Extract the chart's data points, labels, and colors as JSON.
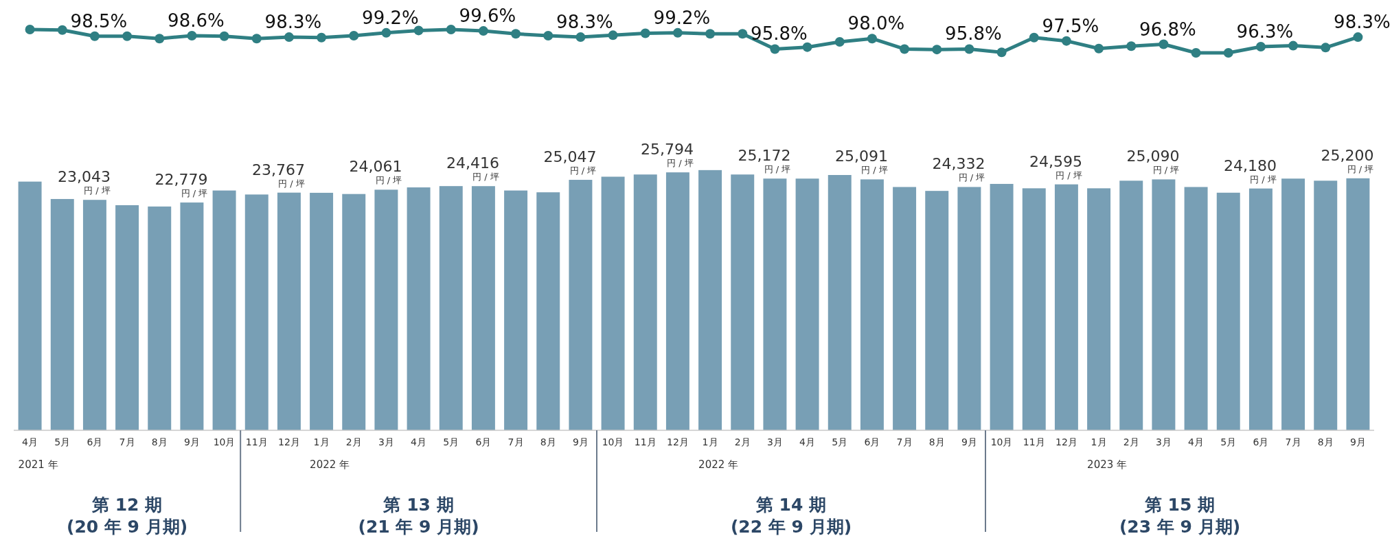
{
  "chart_data": [
    {
      "type": "line",
      "marker": "circle",
      "categories": [
        null,
        null,
        null,
        null,
        null,
        null,
        null,
        null,
        null,
        null,
        null,
        null,
        null,
        null,
        null,
        null,
        null,
        null,
        null,
        null,
        null,
        null,
        null,
        null,
        null,
        null,
        null,
        null,
        null,
        null,
        null,
        null,
        null,
        null,
        null,
        null,
        null,
        null,
        null,
        null,
        null,
        null
      ],
      "series": [
        {
          "color": "#2f7f83",
          "values": [
            99.9,
            99.8,
            98.5,
            98.5,
            98.0,
            98.6,
            98.5,
            98.0,
            98.3,
            98.2,
            98.6,
            99.2,
            99.7,
            99.9,
            99.6,
            99.0,
            98.6,
            98.3,
            98.7,
            99.1,
            99.2,
            99.0,
            99.0,
            95.8,
            96.2,
            97.3,
            98.0,
            95.8,
            95.7,
            95.8,
            95.1,
            98.2,
            97.5,
            95.9,
            96.4,
            96.8,
            95.0,
            95.0,
            96.3,
            96.5,
            96.1,
            98.3
          ],
          "value_labels": [
            null,
            null,
            "98.5%",
            null,
            null,
            "98.6%",
            null,
            null,
            "98.3%",
            null,
            null,
            "99.2%",
            null,
            null,
            "99.6%",
            null,
            null,
            "98.3%",
            null,
            null,
            "99.2%",
            null,
            null,
            "95.8%",
            null,
            null,
            "98.0%",
            null,
            null,
            "95.8%",
            null,
            null,
            "97.5%",
            null,
            null,
            "96.8%",
            null,
            null,
            "96.3%",
            null,
            null,
            "98.3%"
          ]
        }
      ]
    },
    {
      "type": "bar",
      "categories": [
        "4月",
        "5月",
        "6月",
        "7月",
        "8月",
        "9月",
        "10月",
        "11月",
        "12月",
        "1月",
        "2月",
        "3月",
        "4月",
        "5月",
        "6月",
        "7月",
        "8月",
        "9月",
        "10月",
        "11月",
        "12月",
        "1月",
        "2月",
        "3月",
        "4月",
        "5月",
        "6月",
        "7月",
        "8月",
        "9月",
        "10月",
        "11月",
        "12月",
        "1月",
        "2月",
        "3月",
        "4月",
        "5月",
        "6月",
        "7月",
        "8月",
        "9月"
      ],
      "series": [
        {
          "color": "#789fb5",
          "values": [
            24870,
            23130,
            23043,
            22510,
            22380,
            22779,
            23980,
            23580,
            23767,
            23750,
            23630,
            24061,
            24290,
            24420,
            24416,
            23980,
            23800,
            25047,
            25360,
            25580,
            25794,
            26020,
            25580,
            25172,
            25170,
            25530,
            25091,
            24330,
            23940,
            24332,
            24640,
            24200,
            24595,
            24200,
            24960,
            25090,
            24330,
            23760,
            24180,
            25170,
            24960,
            25200
          ],
          "value_labels": [
            null,
            null,
            "23,043\n円 / 坪",
            null,
            null,
            "22,779\n円 / 坪",
            null,
            null,
            "23,767\n円 / 坪",
            null,
            null,
            "24,061\n円 / 坪",
            null,
            null,
            "24,416\n円 / 坪",
            null,
            null,
            "25,047\n円 / 坪",
            null,
            null,
            "25,794\n円 / 坪",
            null,
            null,
            "25,172\n円 / 坪",
            null,
            null,
            "25,091\n円 / 坪",
            null,
            null,
            "24,332\n円 / 坪",
            null,
            null,
            "24,595\n円 / 坪",
            null,
            null,
            "25,090\n円 / 坪",
            null,
            null,
            "24,180\n円 / 坪",
            null,
            null,
            "25,200\n円 / 坪"
          ]
        }
      ],
      "annotations": [
        "2021 年",
        "2022 年",
        "2022 年",
        "2023 年",
        "第 12 期\n(20 年 9 月期)",
        "第 13 期\n(21 年 9 月期)",
        "第 14 期\n(22 年 9 月期)",
        "第 15 期\n(23 年 9 月期)"
      ]
    }
  ]
}
